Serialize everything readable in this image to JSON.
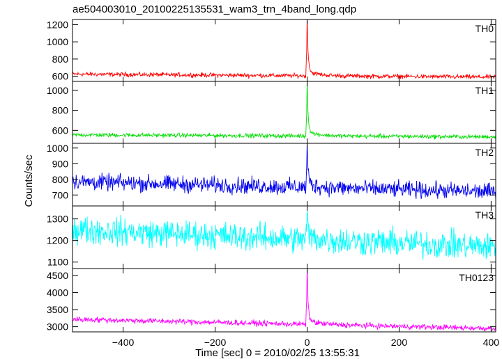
{
  "chart_data": {
    "type": "line",
    "title": "ae504003010_20100225135531_wam3_trn_4band_long.qdp",
    "xlabel": "Time [sec] 0 = 2010/02/25 13:55:31",
    "ylabel": "Counts/sec",
    "xlim": [
      -510,
      410
    ],
    "x_ticks": [
      -400,
      -200,
      0,
      200,
      400
    ],
    "x_tick_labels": [
      "−400",
      "−200",
      "0",
      "200",
      "400"
    ],
    "time_step_sec": 1,
    "panels": [
      {
        "name": "TH0",
        "color": "#ff0000",
        "ylim": [
          540,
          1260
        ],
        "yticks": [
          600,
          800,
          1000,
          1200
        ],
        "baseline_start": 625,
        "baseline_end": 590,
        "noise": 22,
        "peak": 1260,
        "peak_time": 0
      },
      {
        "name": "TH1",
        "color": "#00dd00",
        "ylim": [
          470,
          1090
        ],
        "yticks": [
          600,
          800,
          1000
        ],
        "baseline_start": 555,
        "baseline_end": 535,
        "noise": 18,
        "peak": 1080,
        "peak_time": 0
      },
      {
        "name": "TH2",
        "color": "#0000ee",
        "ylim": [
          630,
          1030
        ],
        "yticks": [
          700,
          800,
          900,
          1000
        ],
        "baseline_start": 785,
        "baseline_end": 720,
        "noise": 45,
        "peak": 1010,
        "peak_time": 0
      },
      {
        "name": "TH3",
        "color": "#00ffff",
        "ylim": [
          1070,
          1360
        ],
        "yticks": [
          1100,
          1200,
          1300
        ],
        "baseline_start": 1250,
        "baseline_end": 1170,
        "noise": 55,
        "peak": 1330,
        "peak_time": 0
      },
      {
        "name": "TH0123",
        "color": "#ff00ff",
        "ylim": [
          2850,
          4700
        ],
        "yticks": [
          3000,
          3500,
          4000,
          4500
        ],
        "baseline_start": 3220,
        "baseline_end": 2950,
        "noise": 70,
        "peak": 4650,
        "peak_time": 0
      }
    ]
  }
}
